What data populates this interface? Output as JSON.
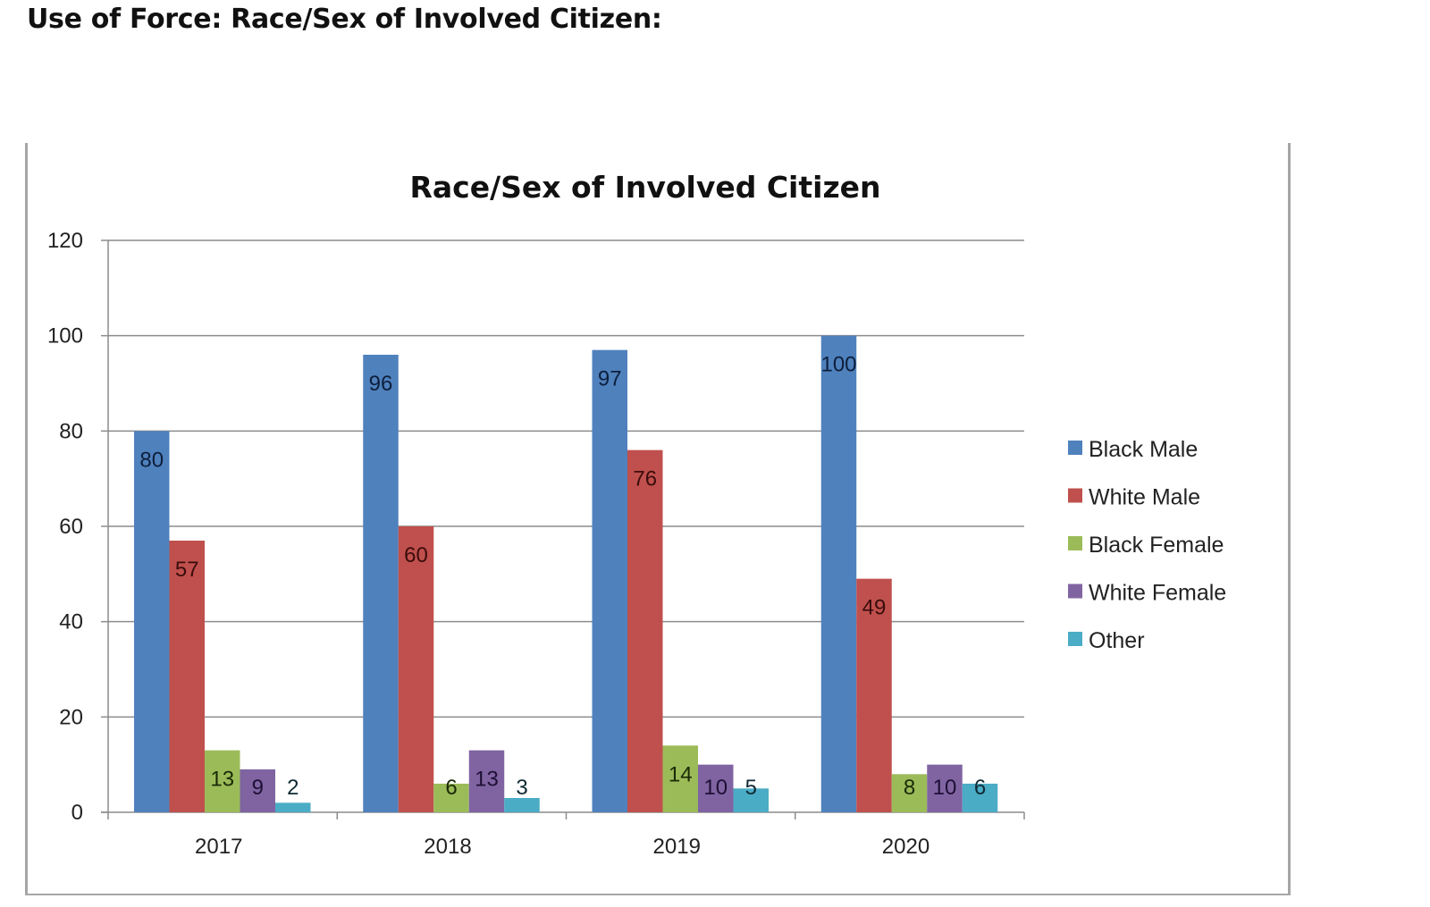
{
  "page": {
    "heading": "Use of Force: Race/Sex of Involved Citizen:"
  },
  "chart_data": {
    "type": "bar",
    "title": "Race/Sex of Involved Citizen",
    "xlabel": "",
    "ylabel": "",
    "categories": [
      "2017",
      "2018",
      "2019",
      "2020"
    ],
    "series": [
      {
        "name": "Black Male",
        "color": "#4f81bd",
        "label_color": "#0d1f3c",
        "values": [
          80,
          96,
          97,
          100
        ]
      },
      {
        "name": "White Male",
        "color": "#c0504d",
        "label_color": "#3a0d0c",
        "values": [
          57,
          60,
          76,
          49
        ]
      },
      {
        "name": "Black Female",
        "color": "#9bbb59",
        "label_color": "#1a2a06",
        "values": [
          13,
          6,
          14,
          8
        ]
      },
      {
        "name": "White Female",
        "color": "#8064a2",
        "label_color": "#1d0f35",
        "values": [
          9,
          13,
          10,
          10
        ]
      },
      {
        "name": "Other",
        "color": "#4bacc6",
        "label_color": "#0f2a33",
        "values": [
          2,
          3,
          5,
          6
        ]
      }
    ],
    "ylim": [
      0,
      120
    ],
    "yticks": [
      0,
      20,
      40,
      60,
      80,
      100,
      120
    ],
    "grid": true,
    "legend_position": "right",
    "data_labels": true
  }
}
